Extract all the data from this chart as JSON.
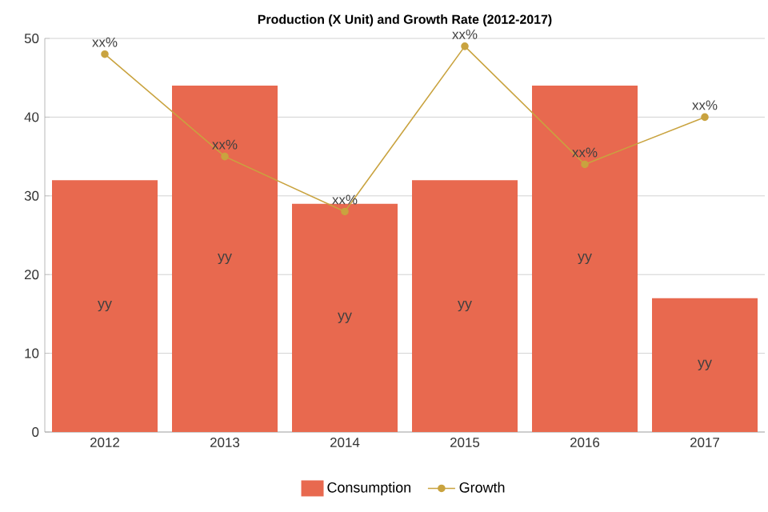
{
  "chart_data": {
    "type": "bar",
    "title": "Production (X Unit) and Growth Rate (2012-2017)",
    "categories": [
      "2012",
      "2013",
      "2014",
      "2015",
      "2016",
      "2017"
    ],
    "series": [
      {
        "name": "Consumption",
        "color": "#e8694f",
        "values": [
          32,
          44,
          29,
          32,
          44,
          17
        ],
        "value_labels": [
          "yy",
          "yy",
          "yy",
          "yy",
          "yy",
          "yy"
        ]
      },
      {
        "name": "Growth",
        "type": "line",
        "color": "#c9a33f",
        "marker": "circle",
        "values": [
          48,
          35,
          28,
          49,
          34,
          40
        ],
        "value_labels": [
          "xx%",
          "xx%",
          "xx%",
          "xx%",
          "xx%",
          "xx%"
        ]
      }
    ],
    "ylim": [
      0,
      50
    ],
    "yticks": [
      0,
      10,
      20,
      30,
      40,
      50
    ],
    "grid": "y",
    "legend": "bottom"
  }
}
